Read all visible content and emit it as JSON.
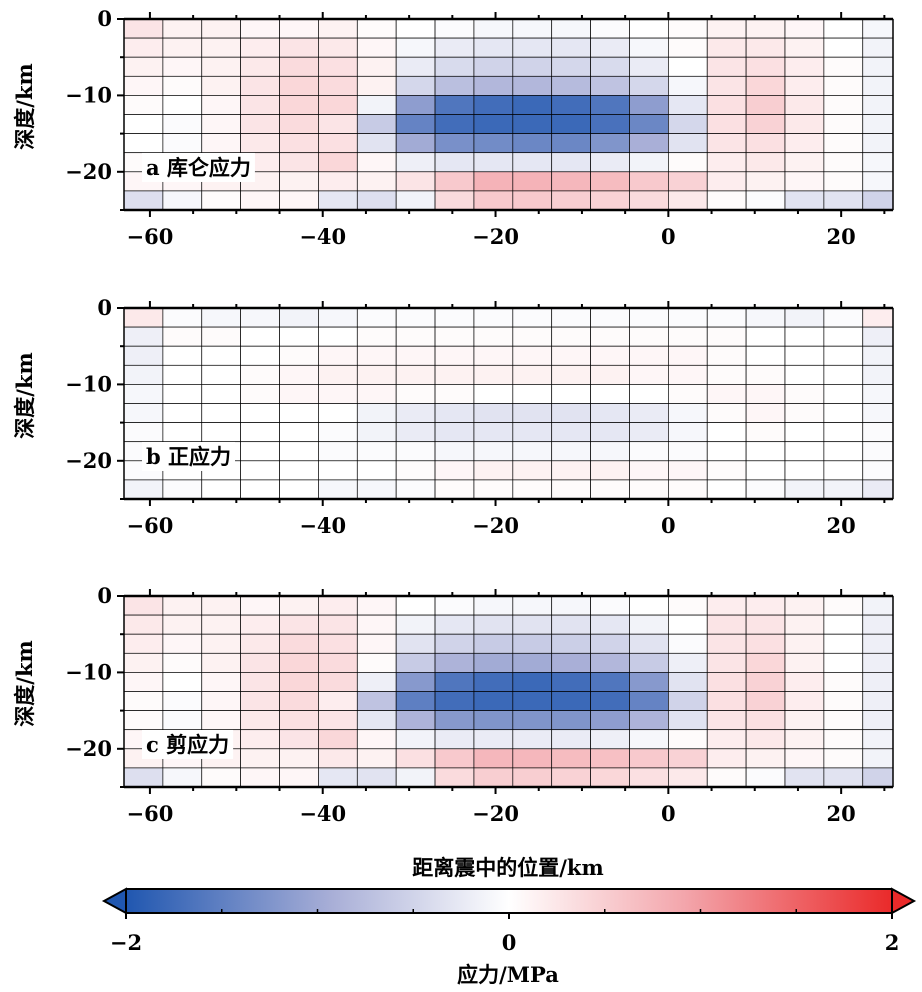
{
  "chart_data": [
    {
      "type": "heatmap",
      "panel_label": "a 库仑应力",
      "ylabel": "深度/km",
      "xlim": [
        -63,
        26
      ],
      "ylim": [
        -25,
        0
      ],
      "xticks": [
        -60,
        -40,
        -20,
        0,
        20
      ],
      "xtick_labels": [
        "−60",
        "−40",
        "−20",
        "0",
        "20"
      ],
      "yticks": [
        0,
        -10,
        -20
      ],
      "ytick_labels": [
        "0",
        "−10",
        "−20"
      ],
      "x_edges": [
        -63,
        -58.5,
        -54,
        -49.5,
        -45,
        -40.5,
        -36,
        -31.5,
        -27,
        -22.5,
        -18,
        -13.5,
        -9,
        -4.5,
        0,
        4.5,
        9,
        13.5,
        18,
        22.5,
        26
      ],
      "y_edges": [
        0,
        -2.5,
        -5,
        -7.5,
        -10,
        -12.5,
        -15,
        -17.5,
        -20,
        -22.5,
        -25
      ],
      "values": [
        [
          0.3,
          0.15,
          0.15,
          0.1,
          0.1,
          0.15,
          0.05,
          0.0,
          -0.05,
          -0.1,
          -0.1,
          -0.1,
          -0.05,
          0.0,
          0.05,
          0.15,
          0.15,
          0.1,
          0.0,
          -0.1
        ],
        [
          0.2,
          0.15,
          0.15,
          0.2,
          0.3,
          0.25,
          0.1,
          -0.1,
          -0.25,
          -0.3,
          -0.3,
          -0.3,
          -0.25,
          -0.1,
          0.05,
          0.25,
          0.25,
          0.15,
          0.0,
          -0.15
        ],
        [
          0.15,
          0.1,
          0.15,
          0.25,
          0.4,
          0.35,
          0.15,
          -0.25,
          -0.45,
          -0.55,
          -0.55,
          -0.5,
          -0.45,
          -0.25,
          0.0,
          0.3,
          0.35,
          0.2,
          0.05,
          -0.15
        ],
        [
          0.1,
          0.05,
          0.15,
          0.3,
          0.45,
          0.4,
          0.15,
          -0.5,
          -0.8,
          -0.9,
          -0.9,
          -0.85,
          -0.75,
          -0.5,
          -0.1,
          0.3,
          0.45,
          0.2,
          0.05,
          -0.15
        ],
        [
          0.05,
          0.0,
          0.1,
          0.3,
          0.45,
          0.45,
          -0.15,
          -1.2,
          -1.65,
          -1.75,
          -1.8,
          -1.75,
          -1.65,
          -1.2,
          -0.3,
          0.35,
          0.55,
          0.25,
          0.05,
          -0.15
        ],
        [
          0.0,
          -0.05,
          0.1,
          0.3,
          0.4,
          0.3,
          -0.65,
          -1.5,
          -1.75,
          -1.8,
          -1.8,
          -1.8,
          -1.7,
          -1.45,
          -0.5,
          0.35,
          0.5,
          0.25,
          0.05,
          -0.15
        ],
        [
          0.0,
          -0.05,
          0.1,
          0.25,
          0.35,
          0.35,
          -0.35,
          -1.05,
          -1.35,
          -1.4,
          -1.45,
          -1.45,
          -1.3,
          -1.0,
          -0.35,
          0.3,
          0.35,
          0.2,
          0.05,
          -0.15
        ],
        [
          0.05,
          0.05,
          0.15,
          0.2,
          0.3,
          0.45,
          0.1,
          -0.2,
          -0.3,
          -0.3,
          -0.3,
          -0.3,
          -0.25,
          -0.15,
          0.05,
          0.2,
          0.25,
          0.15,
          0.05,
          -0.1
        ],
        [
          0.1,
          0.1,
          0.15,
          0.15,
          0.15,
          0.2,
          0.15,
          0.3,
          0.6,
          0.85,
          0.85,
          0.8,
          0.75,
          0.6,
          0.5,
          0.2,
          0.15,
          0.1,
          0.05,
          -0.1
        ],
        [
          -0.4,
          -0.1,
          0.05,
          0.1,
          0.1,
          -0.3,
          -0.4,
          -0.15,
          0.4,
          0.6,
          0.6,
          0.55,
          0.5,
          0.4,
          0.25,
          0.05,
          -0.05,
          -0.35,
          -0.35,
          -0.55
        ]
      ]
    },
    {
      "type": "heatmap",
      "panel_label": "b 正应力",
      "ylabel": "深度/km",
      "xlim": [
        -63,
        26
      ],
      "ylim": [
        -25,
        0
      ],
      "xticks": [
        -60,
        -40,
        -20,
        0,
        20
      ],
      "xtick_labels": [
        "−60",
        "−40",
        "−20",
        "0",
        "20"
      ],
      "yticks": [
        0,
        -10,
        -20
      ],
      "ytick_labels": [
        "0",
        "−10",
        "−20"
      ],
      "x_edges": [
        -63,
        -58.5,
        -54,
        -49.5,
        -45,
        -40.5,
        -36,
        -31.5,
        -27,
        -22.5,
        -18,
        -13.5,
        -9,
        -4.5,
        0,
        4.5,
        9,
        13.5,
        18,
        22.5,
        26
      ],
      "y_edges": [
        0,
        -2.5,
        -5,
        -7.5,
        -10,
        -12.5,
        -15,
        -17.5,
        -20,
        -22.5,
        -25
      ],
      "values": [
        [
          0.25,
          -0.05,
          -0.1,
          -0.1,
          -0.15,
          -0.1,
          -0.05,
          -0.05,
          -0.05,
          -0.05,
          -0.05,
          -0.05,
          -0.05,
          -0.05,
          -0.05,
          -0.05,
          -0.1,
          -0.15,
          -0.05,
          0.2
        ],
        [
          -0.2,
          0.05,
          0.05,
          0.0,
          0.0,
          0.0,
          0.05,
          0.05,
          0.05,
          0.05,
          0.05,
          0.05,
          0.05,
          0.05,
          0.05,
          0.05,
          0.0,
          0.0,
          0.0,
          -0.2
        ],
        [
          -0.2,
          0.0,
          0.0,
          0.0,
          0.05,
          0.1,
          0.1,
          0.1,
          0.1,
          0.1,
          0.1,
          0.1,
          0.1,
          0.1,
          0.1,
          0.05,
          0.0,
          0.0,
          0.0,
          -0.15
        ],
        [
          -0.15,
          0.0,
          0.0,
          0.05,
          0.1,
          0.15,
          0.15,
          0.15,
          0.15,
          0.15,
          0.15,
          0.15,
          0.15,
          0.1,
          0.1,
          0.05,
          0.05,
          0.0,
          0.0,
          -0.15
        ],
        [
          -0.1,
          0.0,
          0.0,
          0.05,
          0.1,
          0.1,
          0.1,
          0.05,
          0.05,
          0.0,
          0.0,
          0.0,
          0.0,
          0.0,
          0.05,
          0.1,
          0.1,
          0.05,
          0.0,
          -0.1
        ],
        [
          -0.1,
          0.0,
          0.0,
          0.0,
          0.0,
          0.0,
          -0.15,
          -0.25,
          -0.3,
          -0.35,
          -0.35,
          -0.35,
          -0.3,
          -0.25,
          -0.1,
          0.05,
          0.1,
          0.05,
          0.0,
          -0.1
        ],
        [
          -0.05,
          0.0,
          0.0,
          0.0,
          0.0,
          -0.05,
          -0.15,
          -0.25,
          -0.3,
          -0.3,
          -0.3,
          -0.3,
          -0.3,
          -0.25,
          -0.1,
          0.0,
          0.05,
          0.0,
          0.0,
          -0.05
        ],
        [
          -0.05,
          0.0,
          0.0,
          0.0,
          0.0,
          -0.05,
          -0.05,
          -0.05,
          -0.1,
          -0.1,
          -0.1,
          -0.1,
          -0.1,
          -0.05,
          -0.05,
          0.0,
          0.0,
          0.0,
          0.0,
          -0.05
        ],
        [
          -0.05,
          0.0,
          0.0,
          0.0,
          0.0,
          0.0,
          0.0,
          0.05,
          0.1,
          0.15,
          0.15,
          0.15,
          0.15,
          0.1,
          0.1,
          0.05,
          0.0,
          0.0,
          0.0,
          -0.05
        ],
        [
          -0.15,
          -0.05,
          0.0,
          0.0,
          0.0,
          -0.1,
          -0.1,
          -0.05,
          0.05,
          0.05,
          0.05,
          0.05,
          0.05,
          0.05,
          0.05,
          0.0,
          -0.05,
          -0.15,
          -0.15,
          -0.25
        ]
      ]
    },
    {
      "type": "heatmap",
      "panel_label": "c 剪应力",
      "ylabel": "深度/km",
      "xlim": [
        -63,
        26
      ],
      "ylim": [
        -25,
        0
      ],
      "xticks": [
        -60,
        -40,
        -20,
        0,
        20
      ],
      "xtick_labels": [
        "−60",
        "−40",
        "−20",
        "0",
        "20"
      ],
      "yticks": [
        0,
        -10,
        -20
      ],
      "ytick_labels": [
        "0",
        "−10",
        "−20"
      ],
      "x_edges": [
        -63,
        -58.5,
        -54,
        -49.5,
        -45,
        -40.5,
        -36,
        -31.5,
        -27,
        -22.5,
        -18,
        -13.5,
        -9,
        -4.5,
        0,
        4.5,
        9,
        13.5,
        18,
        22.5,
        26
      ],
      "y_edges": [
        0,
        -2.5,
        -5,
        -7.5,
        -10,
        -12.5,
        -15,
        -17.5,
        -20,
        -22.5,
        -25
      ],
      "values": [
        [
          0.3,
          0.15,
          0.15,
          0.1,
          0.15,
          0.2,
          0.1,
          0.0,
          -0.05,
          -0.1,
          -0.1,
          -0.1,
          -0.05,
          0.0,
          0.05,
          0.2,
          0.2,
          0.15,
          0.05,
          -0.15
        ],
        [
          0.25,
          0.15,
          0.15,
          0.2,
          0.3,
          0.3,
          0.1,
          -0.15,
          -0.3,
          -0.35,
          -0.35,
          -0.35,
          -0.3,
          -0.15,
          0.0,
          0.3,
          0.3,
          0.15,
          0.0,
          -0.2
        ],
        [
          0.2,
          0.1,
          0.15,
          0.25,
          0.4,
          0.35,
          0.1,
          -0.35,
          -0.55,
          -0.65,
          -0.65,
          -0.6,
          -0.55,
          -0.35,
          -0.05,
          0.3,
          0.35,
          0.15,
          0.0,
          -0.2
        ],
        [
          0.15,
          0.05,
          0.15,
          0.3,
          0.45,
          0.4,
          0.05,
          -0.65,
          -0.95,
          -1.05,
          -1.05,
          -1.0,
          -0.9,
          -0.65,
          -0.2,
          0.3,
          0.45,
          0.15,
          0.0,
          -0.2
        ],
        [
          0.1,
          0.0,
          0.1,
          0.3,
          0.45,
          0.4,
          -0.2,
          -1.25,
          -1.65,
          -1.75,
          -1.8,
          -1.75,
          -1.65,
          -1.25,
          -0.35,
          0.35,
          0.5,
          0.2,
          0.05,
          -0.2
        ],
        [
          0.05,
          -0.05,
          0.1,
          0.3,
          0.4,
          0.2,
          -0.75,
          -1.55,
          -1.75,
          -1.8,
          -1.8,
          -1.8,
          -1.75,
          -1.5,
          -0.55,
          0.35,
          0.5,
          0.2,
          0.05,
          -0.2
        ],
        [
          0.05,
          -0.05,
          0.1,
          0.25,
          0.35,
          0.3,
          -0.3,
          -0.95,
          -1.25,
          -1.3,
          -1.3,
          -1.3,
          -1.2,
          -0.95,
          -0.35,
          0.3,
          0.35,
          0.15,
          0.05,
          -0.2
        ],
        [
          0.1,
          0.05,
          0.15,
          0.2,
          0.3,
          0.45,
          0.1,
          -0.15,
          -0.25,
          -0.25,
          -0.25,
          -0.25,
          -0.2,
          -0.1,
          0.05,
          0.2,
          0.25,
          0.15,
          0.05,
          -0.15
        ],
        [
          0.15,
          0.1,
          0.15,
          0.15,
          0.15,
          0.25,
          0.15,
          0.35,
          0.6,
          0.8,
          0.8,
          0.75,
          0.7,
          0.6,
          0.5,
          0.2,
          0.15,
          0.1,
          0.05,
          -0.15
        ],
        [
          -0.4,
          -0.1,
          0.05,
          0.1,
          0.1,
          -0.3,
          -0.35,
          -0.15,
          0.4,
          0.55,
          0.55,
          0.5,
          0.45,
          0.35,
          0.25,
          0.05,
          -0.05,
          -0.35,
          -0.35,
          -0.55
        ]
      ]
    }
  ],
  "xlabel": "距离震中的位置/km",
  "colorbar": {
    "label": "应力/MPa",
    "min": -2,
    "max": 2,
    "ticks": [
      -2,
      0,
      2
    ],
    "tick_labels": [
      "−2",
      "0",
      "2"
    ],
    "minor_ticks": [
      -1.5,
      -1,
      -0.5,
      0.5,
      1,
      1.5
    ],
    "colors": {
      "min": "#2057b0",
      "mid": "#ffffff",
      "max": "#ea2a2a",
      "low_mid": "#a9afd7",
      "high_mid": "#f3a5ab"
    }
  }
}
